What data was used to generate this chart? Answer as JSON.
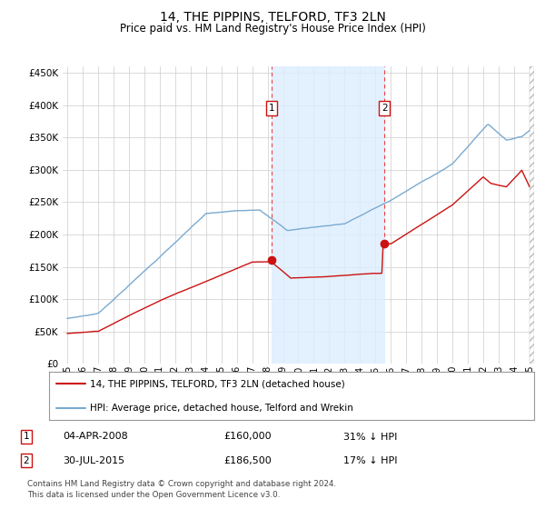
{
  "title": "14, THE PIPPINS, TELFORD, TF3 2LN",
  "subtitle": "Price paid vs. HM Land Registry's House Price Index (HPI)",
  "legend_line1": "14, THE PIPPINS, TELFORD, TF3 2LN (detached house)",
  "legend_line2": "HPI: Average price, detached house, Telford and Wrekin",
  "annotation1_label": "1",
  "annotation1_date": "04-APR-2008",
  "annotation1_price": "£160,000",
  "annotation1_hpi": "31% ↓ HPI",
  "annotation1_year": 2008.25,
  "annotation1_price_val": 160000,
  "annotation2_label": "2",
  "annotation2_date": "30-JUL-2015",
  "annotation2_price": "£186,500",
  "annotation2_hpi": "17% ↓ HPI",
  "annotation2_year": 2015.58,
  "annotation2_price_val": 186500,
  "footer": "Contains HM Land Registry data © Crown copyright and database right 2024.\nThis data is licensed under the Open Government Licence v3.0.",
  "hpi_color": "#7aaad0",
  "price_color": "#cc1111",
  "annotation_color": "#ee4444",
  "shading_color": "#ddeeff",
  "background_color": "#ffffff",
  "grid_color": "#cccccc",
  "ylim": [
    0,
    460000
  ],
  "yticks": [
    0,
    50000,
    100000,
    150000,
    200000,
    250000,
    300000,
    350000,
    400000,
    450000
  ],
  "xlim_start": 1994.7,
  "xlim_end": 2025.3,
  "xticks": [
    1995,
    1996,
    1997,
    1998,
    1999,
    2000,
    2001,
    2002,
    2003,
    2004,
    2005,
    2006,
    2007,
    2008,
    2009,
    2010,
    2011,
    2012,
    2013,
    2014,
    2015,
    2016,
    2017,
    2018,
    2019,
    2020,
    2021,
    2022,
    2023,
    2024,
    2025
  ]
}
